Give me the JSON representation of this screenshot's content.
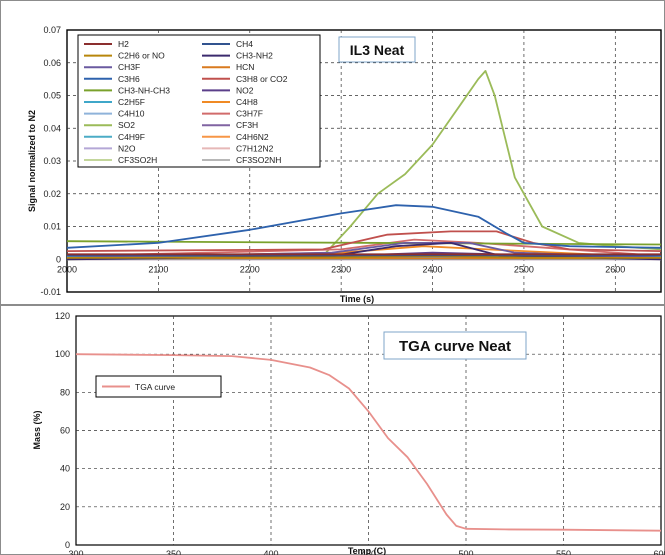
{
  "chart_data": [
    {
      "type": "line",
      "annotation": "IL3 Neat",
      "xlabel": "Time (s)",
      "ylabel": "Signal normalized to N2",
      "xlim": [
        2000,
        2650
      ],
      "ylim": [
        -0.01,
        0.07
      ],
      "xticks": [
        "2000",
        "2100",
        "2200",
        "2300",
        "2400",
        "2500",
        "2600"
      ],
      "yticks": [
        "-0.01",
        "0",
        "0.01",
        "0.02",
        "0.03",
        "0.04",
        "0.05",
        "0.06",
        "0.07"
      ],
      "grid": true,
      "legend_position": "top-left",
      "series": [
        {
          "name": "H2",
          "color": "#8b2e2e",
          "x": [
            2000,
            2650
          ],
          "y": [
            0.0015,
            0.0015
          ]
        },
        {
          "name": "CH4",
          "color": "#31538f",
          "x": [
            2000,
            2650
          ],
          "y": [
            0.0012,
            0.0012
          ]
        },
        {
          "name": "C2H6 or NO",
          "color": "#b8860b",
          "x": [
            2000,
            2300,
            2400,
            2500,
            2650
          ],
          "y": [
            0.0004,
            0.0006,
            0.001,
            0.0005,
            0.0004
          ]
        },
        {
          "name": "CH3-NH2",
          "color": "#3b2a6e",
          "x": [
            2000,
            2290,
            2360,
            2420,
            2475,
            2650
          ],
          "y": [
            0.0,
            0.001,
            0.004,
            0.005,
            0.001,
            0.0
          ]
        },
        {
          "name": "CH3F",
          "color": "#6a5aa0",
          "x": [
            2000,
            2290,
            2370,
            2440,
            2490,
            2650
          ],
          "y": [
            0.0005,
            0.002,
            0.005,
            0.005,
            0.002,
            0.0005
          ]
        },
        {
          "name": "HCN",
          "color": "#d97a1f",
          "x": [
            2000,
            2650
          ],
          "y": [
            0.0003,
            0.0003
          ]
        },
        {
          "name": "C3H6",
          "color": "#2e62ad",
          "x": [
            2000,
            2100,
            2200,
            2300,
            2360,
            2400,
            2450,
            2480,
            2500,
            2550,
            2650
          ],
          "y": [
            0.0035,
            0.005,
            0.009,
            0.014,
            0.0165,
            0.016,
            0.013,
            0.008,
            0.005,
            0.004,
            0.0035
          ]
        },
        {
          "name": "C3H8 or CO2",
          "color": "#c0504d",
          "x": [
            2000,
            2280,
            2350,
            2420,
            2470,
            2510,
            2550,
            2650
          ],
          "y": [
            0.0025,
            0.003,
            0.0075,
            0.0085,
            0.0085,
            0.005,
            0.003,
            0.0025
          ]
        },
        {
          "name": "CH3-NH-CH3",
          "color": "#7aa12c",
          "x": [
            2000,
            2650
          ],
          "y": [
            0.0055,
            0.0045
          ]
        },
        {
          "name": "NO2",
          "color": "#5b3f8a",
          "x": [
            2000,
            2300,
            2400,
            2470,
            2650
          ],
          "y": [
            0.0002,
            0.001,
            0.002,
            0.0015,
            0.0002
          ]
        },
        {
          "name": "C2H5F",
          "color": "#3fa7c9",
          "x": [
            2000,
            2650
          ],
          "y": [
            0.0008,
            0.0008
          ]
        },
        {
          "name": "C4H8",
          "color": "#f08a24",
          "x": [
            2000,
            2300,
            2390,
            2460,
            2650
          ],
          "y": [
            0.0005,
            0.002,
            0.004,
            0.003,
            0.0005
          ]
        },
        {
          "name": "C4H10",
          "color": "#8fb3da",
          "x": [
            2000,
            2650
          ],
          "y": [
            0.0003,
            0.0003
          ]
        },
        {
          "name": "C3H7F",
          "color": "#d16b6b",
          "x": [
            2000,
            2300,
            2380,
            2450,
            2650
          ],
          "y": [
            0.001,
            0.003,
            0.006,
            0.005,
            0.001
          ]
        },
        {
          "name": "SO2",
          "color": "#9bbb59",
          "x": [
            2000,
            2280,
            2310,
            2340,
            2370,
            2400,
            2430,
            2450,
            2458,
            2468,
            2490,
            2520,
            2560,
            2600,
            2650
          ],
          "y": [
            0.0,
            0.001,
            0.01,
            0.02,
            0.026,
            0.035,
            0.047,
            0.055,
            0.0575,
            0.05,
            0.025,
            0.01,
            0.005,
            0.004,
            0.003
          ]
        },
        {
          "name": "CF3H",
          "color": "#8064a2",
          "x": [
            2000,
            2650
          ],
          "y": [
            0.0002,
            0.0002
          ]
        },
        {
          "name": "C4H9F",
          "color": "#4bacc6",
          "x": [
            2000,
            2650
          ],
          "y": [
            0.0001,
            0.0001
          ]
        },
        {
          "name": "C4H6N2",
          "color": "#f79646",
          "x": [
            2000,
            2650
          ],
          "y": [
            0.0001,
            0.0001
          ]
        },
        {
          "name": "N2O",
          "color": "#b4a7d6",
          "x": [
            2000,
            2650
          ],
          "y": [
            0.0,
            0.0
          ]
        },
        {
          "name": "C7H12N2",
          "color": "#e6b8b7",
          "x": [
            2000,
            2650
          ],
          "y": [
            0.0,
            0.0
          ]
        },
        {
          "name": "CF3SO2H",
          "color": "#c3d69b",
          "x": [
            2000,
            2650
          ],
          "y": [
            0.0,
            0.0
          ]
        },
        {
          "name": "CF3SO2NH",
          "color": "#b7b7b7",
          "x": [
            2000,
            2650
          ],
          "y": [
            0.0,
            0.0
          ]
        }
      ]
    },
    {
      "type": "line",
      "annotation": "TGA curve Neat",
      "xlabel": "Temp (C)",
      "ylabel": "Mass (%)",
      "xlim": [
        300,
        600
      ],
      "ylim": [
        0,
        120
      ],
      "xticks": [
        "300",
        "350",
        "400",
        "450",
        "500",
        "550",
        "600"
      ],
      "yticks": [
        "0",
        "20",
        "40",
        "60",
        "80",
        "100",
        "120"
      ],
      "grid": true,
      "legend_position": "upper-left",
      "series": [
        {
          "name": "TGA curve",
          "color": "#e8908c",
          "x": [
            300,
            350,
            380,
            400,
            420,
            430,
            440,
            450,
            460,
            470,
            480,
            490,
            495,
            500,
            520,
            550,
            600
          ],
          "y": [
            100,
            99.5,
            99,
            97,
            93,
            89,
            82,
            70,
            56,
            46,
            32,
            16,
            10,
            8.5,
            8.2,
            8,
            7.5
          ]
        }
      ]
    }
  ]
}
